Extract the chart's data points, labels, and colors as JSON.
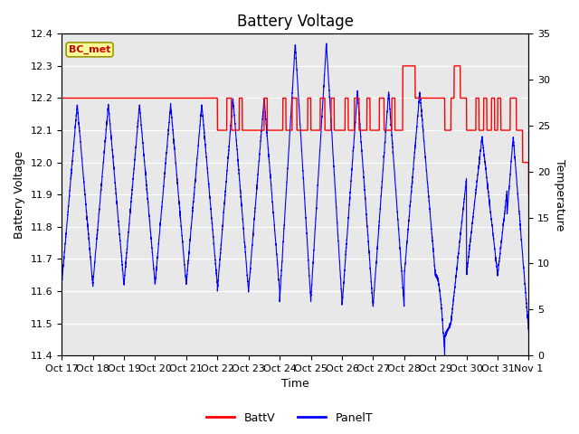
{
  "title": "Battery Voltage",
  "xlabel": "Time",
  "ylabel_left": "Battery Voltage",
  "ylabel_right": "Temperature",
  "ylim_left": [
    11.4,
    12.4
  ],
  "ylim_right": [
    0,
    35
  ],
  "yticks_left": [
    11.4,
    11.5,
    11.6,
    11.7,
    11.8,
    11.9,
    12.0,
    12.1,
    12.2,
    12.3,
    12.4
  ],
  "yticks_right": [
    0,
    5,
    10,
    15,
    20,
    25,
    30,
    35
  ],
  "xtick_labels": [
    "Oct 17",
    "Oct 18",
    "Oct 19",
    "Oct 20",
    "Oct 21",
    "Oct 22",
    "Oct 23",
    "Oct 24",
    "Oct 25",
    "Oct 26",
    "Oct 27",
    "Oct 28",
    "Oct 29",
    "Oct 30",
    "Oct 31",
    "Nov 1"
  ],
  "color_batt": "#ff0000",
  "color_panel": "#0000ff",
  "legend_label_batt": "BattV",
  "legend_label_panel": "PanelT",
  "annotation_text": "BC_met",
  "annotation_bg": "#ffff99",
  "annotation_border": "#999900",
  "bg_plot": "#e8e8e8",
  "bg_figure": "#ffffff",
  "grid_color": "#ffffff",
  "title_fontsize": 12,
  "axis_label_fontsize": 9,
  "tick_label_fontsize": 8
}
